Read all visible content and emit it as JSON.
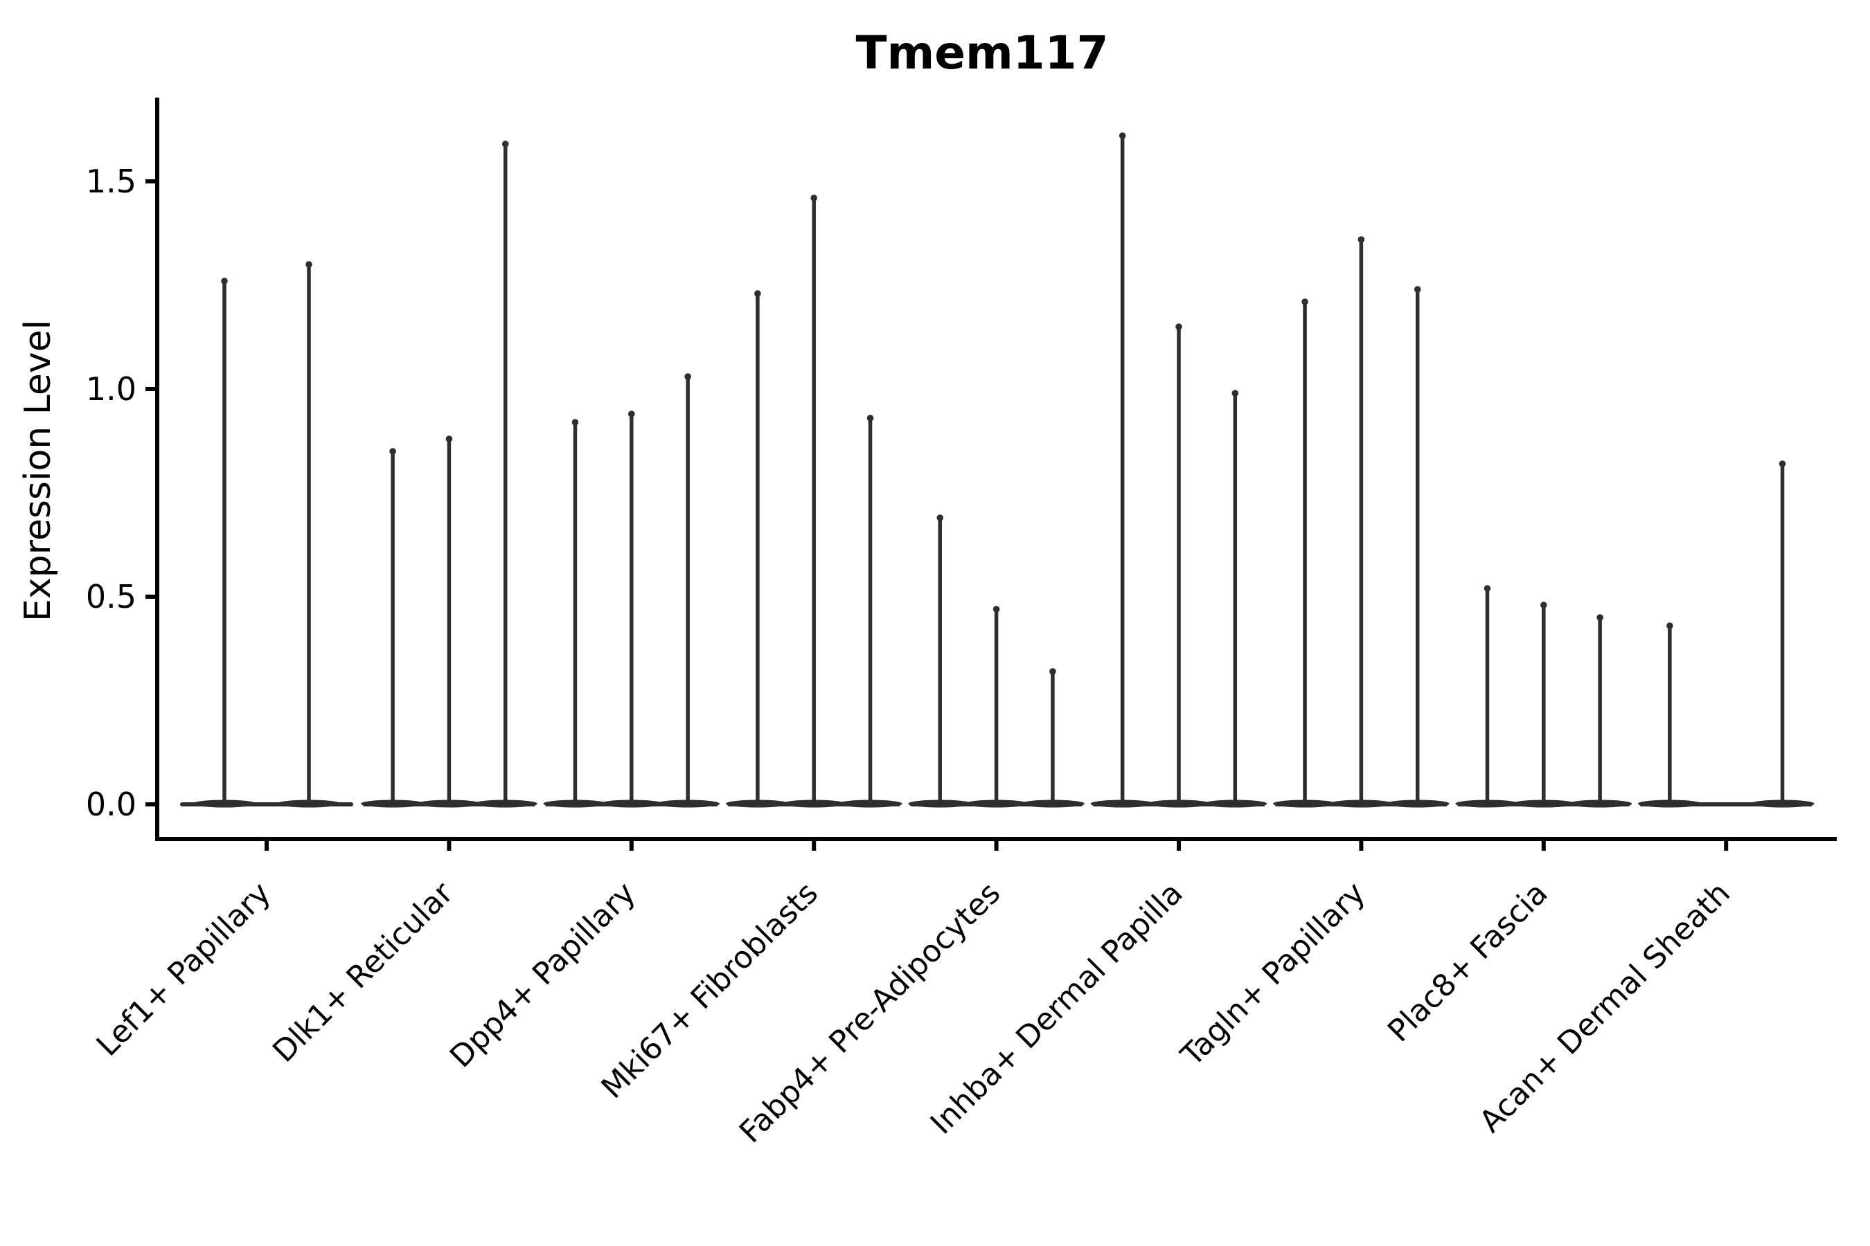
{
  "chart_data": {
    "type": "violin",
    "title": "Tmem117",
    "ylabel": "Expression Level",
    "xlabel": "",
    "grid": false,
    "legend_position": "none",
    "yticks": [
      0.0,
      0.5,
      1.0,
      1.5
    ],
    "ylim": [
      0.0,
      1.7
    ],
    "xtick_rotation_deg": 45,
    "categories": [
      "Lef1+ Papillary",
      "Dlk1+ Reticular",
      "Dpp4+ Papillary",
      "Mki67+ Fibroblasts",
      "Fabp4+ Pre-Adipocytes",
      "Inhba+ Dermal Papilla",
      "Tagln+ Papillary",
      "Plac8+ Fascia",
      "Acan+ Dermal Sheath"
    ],
    "groups": [
      {
        "category": "Lef1+ Papillary",
        "spike_values": [
          1.26,
          1.3
        ]
      },
      {
        "category": "Dlk1+ Reticular",
        "spike_values": [
          0.85,
          0.88,
          1.59
        ]
      },
      {
        "category": "Dpp4+ Papillary",
        "spike_values": [
          0.92,
          0.94,
          1.03
        ]
      },
      {
        "category": "Mki67+ Fibroblasts",
        "spike_values": [
          1.23,
          1.46,
          0.93
        ]
      },
      {
        "category": "Fabp4+ Pre-Adipocytes",
        "spike_values": [
          0.69,
          0.47,
          0.32
        ]
      },
      {
        "category": "Inhba+ Dermal Papilla",
        "spike_values": [
          1.61,
          1.15,
          0.99
        ]
      },
      {
        "category": "Tagln+ Papillary",
        "spike_values": [
          1.21,
          1.36,
          1.24
        ]
      },
      {
        "category": "Plac8+ Fascia",
        "spike_values": [
          0.52,
          0.48,
          0.45
        ]
      },
      {
        "category": "Acan+ Dermal Sheath",
        "spike_values": [
          0.43,
          0.0,
          0.82
        ]
      }
    ],
    "colors": {
      "violin": "#2e2e2e",
      "axis": "#000000",
      "text": "#000000",
      "background": "#ffffff"
    }
  }
}
